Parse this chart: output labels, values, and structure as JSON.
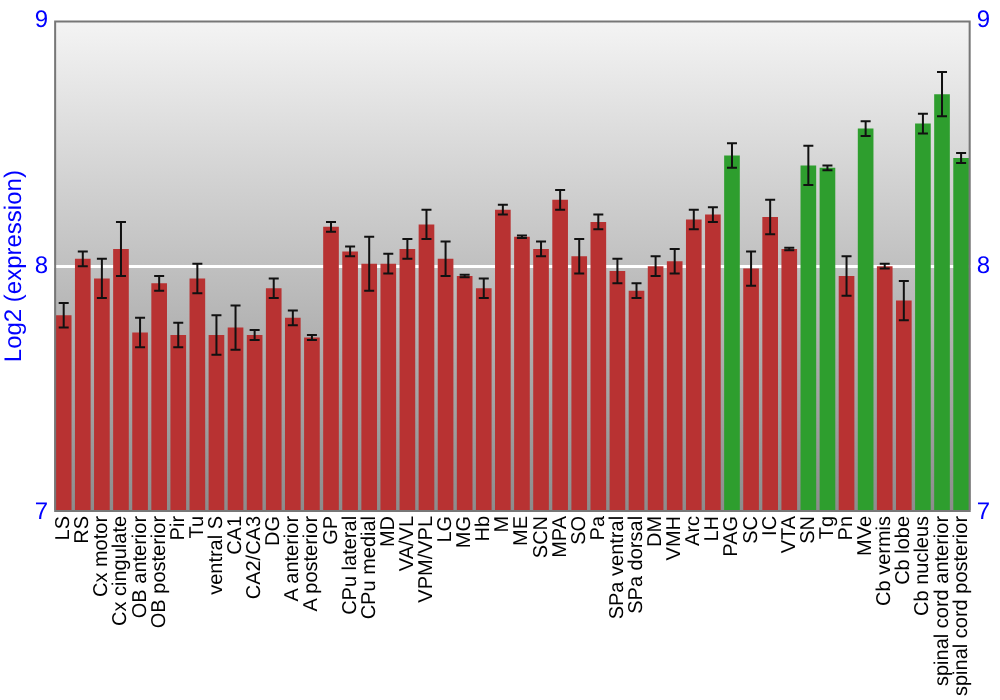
{
  "chart_data": {
    "type": "bar",
    "ylabel": "Log2 (expression)",
    "categories": [
      "LS",
      "RS",
      "Cx motor",
      "Cx cingulate",
      "OB anterior",
      "OB posterior",
      "Pir",
      "Tu",
      "ventral S",
      "CA1",
      "CA2/CA3",
      "DG",
      "A anterior",
      "A posterior",
      "GP",
      "CPu lateral",
      "CPu medial",
      "MD",
      "VA/VL",
      "VPM/VPL",
      "LG",
      "MG",
      "Hb",
      "M",
      "ME",
      "SCN",
      "MPA",
      "SO",
      "Pa",
      "SPa ventral",
      "SPa dorsal",
      "DM",
      "VMH",
      "Arc",
      "LH",
      "PAG",
      "SC",
      "IC",
      "VTA",
      "SN",
      "Tg",
      "Pn",
      "MVe",
      "Cb vermis",
      "Cb lobe",
      "Cb nucleus",
      "spinal cord anterior",
      "spinal cord posterior"
    ],
    "values": [
      7.8,
      8.03,
      7.95,
      8.07,
      7.73,
      7.93,
      7.72,
      7.95,
      7.72,
      7.75,
      7.72,
      7.91,
      7.79,
      7.71,
      8.16,
      8.06,
      8.01,
      8.01,
      8.07,
      8.17,
      8.03,
      7.96,
      7.91,
      8.23,
      8.12,
      8.07,
      8.27,
      8.04,
      8.18,
      7.98,
      7.9,
      8.0,
      8.02,
      8.19,
      8.21,
      8.45,
      7.99,
      8.2,
      8.07,
      8.41,
      8.4,
      7.96,
      8.56,
      8.0,
      7.86,
      8.58,
      8.7,
      8.44
    ],
    "errors": [
      0.05,
      0.03,
      0.08,
      0.11,
      0.06,
      0.03,
      0.05,
      0.06,
      0.08,
      0.09,
      0.02,
      0.04,
      0.03,
      0.01,
      0.02,
      0.02,
      0.11,
      0.04,
      0.04,
      0.06,
      0.07,
      0.005,
      0.04,
      0.02,
      0.005,
      0.03,
      0.04,
      0.07,
      0.03,
      0.05,
      0.03,
      0.04,
      0.05,
      0.04,
      0.03,
      0.05,
      0.07,
      0.07,
      0.005,
      0.08,
      0.01,
      0.08,
      0.03,
      0.01,
      0.08,
      0.04,
      0.09,
      0.02
    ],
    "colors": [
      "#b83232",
      "#b83232",
      "#b83232",
      "#b83232",
      "#b83232",
      "#b83232",
      "#b83232",
      "#b83232",
      "#b83232",
      "#b83232",
      "#b83232",
      "#b83232",
      "#b83232",
      "#b83232",
      "#b83232",
      "#b83232",
      "#b83232",
      "#b83232",
      "#b83232",
      "#b83232",
      "#b83232",
      "#b83232",
      "#b83232",
      "#b83232",
      "#b83232",
      "#b83232",
      "#b83232",
      "#b83232",
      "#b83232",
      "#b83232",
      "#b83232",
      "#b83232",
      "#b83232",
      "#b83232",
      "#b83232",
      "#2e9e2e",
      "#b83232",
      "#b83232",
      "#b83232",
      "#2e9e2e",
      "#2e9e2e",
      "#b83232",
      "#2e9e2e",
      "#b83232",
      "#b83232",
      "#2e9e2e",
      "#2e9e2e",
      "#2e9e2e"
    ],
    "ylim": [
      7,
      9
    ],
    "yticks": [
      7,
      8,
      9
    ],
    "y2lim": [
      7,
      9
    ],
    "y2ticks": [
      7,
      8,
      9
    ],
    "grid": "y",
    "legend": false
  }
}
